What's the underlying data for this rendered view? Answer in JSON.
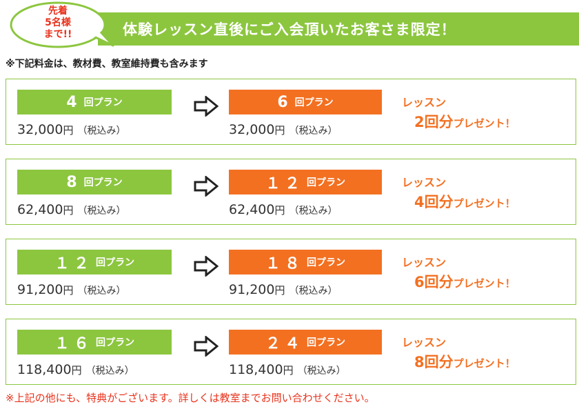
{
  "colors": {
    "green": "#8cc63f",
    "orange": "#f37021",
    "red": "#e8321c"
  },
  "bubble": {
    "line1": "先着",
    "line2": "5名様",
    "line3": "まで!!"
  },
  "banner": {
    "title": "体験レッスン直後にご入会頂いたお客さま限定！"
  },
  "note_top": "※下記料金は、教材費、教室維持費も含みます",
  "common": {
    "plan_unit": "回プラン",
    "yen": "円",
    "tax": "（税込み）",
    "gift_line1": "レッスン",
    "gift_suffix": "回分",
    "gift_present": "プレゼント！"
  },
  "plans": [
    {
      "from_num": "4",
      "to_num": "6",
      "price_from": "32,000",
      "price_to": "32,000",
      "bonus": "2"
    },
    {
      "from_num": "8",
      "to_num": "１２",
      "price_from": "62,400",
      "price_to": "62,400",
      "bonus": "4"
    },
    {
      "from_num": "１２",
      "to_num": "１８",
      "price_from": "91,200",
      "price_to": "91,200",
      "bonus": "6"
    },
    {
      "from_num": "１６",
      "to_num": "２４",
      "price_from": "118,400",
      "price_to": "118,400",
      "bonus": "8"
    }
  ],
  "note_bottom": "※上記の他にも、特典がございます。詳しくは教室までお問い合わせください。"
}
